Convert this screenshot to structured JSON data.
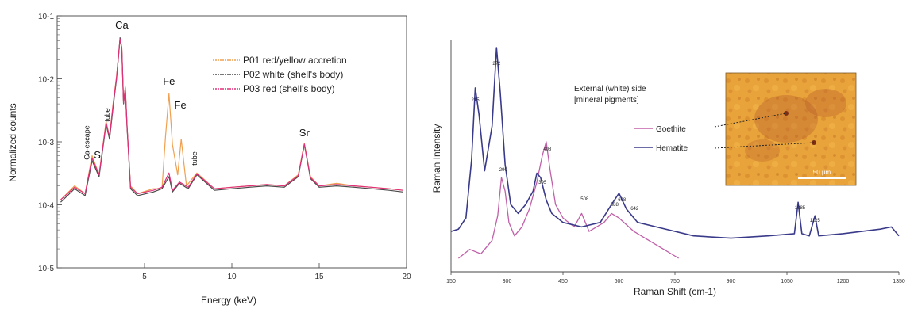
{
  "chart_data": [
    {
      "type": "line",
      "xlabel": "Energy (keV)",
      "ylabel": "Normalized counts",
      "xlim": [
        0,
        20
      ],
      "ylim_log10": [
        -5,
        -1
      ],
      "y_scale": "log",
      "x_ticks": [
        "5",
        "10",
        "15",
        "20"
      ],
      "y_ticks": [
        "10-5",
        "10-4",
        "10-3",
        "10-2",
        "10-1"
      ],
      "legend_position": "top-right",
      "series": [
        {
          "name": "P01 red/yellow accretion",
          "color": "#f0a050",
          "x": [
            0.2,
            1.0,
            1.6,
            2.0,
            2.4,
            2.8,
            3.0,
            3.2,
            3.4,
            3.6,
            3.7,
            3.8,
            3.9,
            4.0,
            4.2,
            4.6,
            5.5,
            6.0,
            6.2,
            6.4,
            6.6,
            6.9,
            7.1,
            7.4,
            8.0,
            9,
            10,
            11,
            12,
            13,
            13.8,
            14.15,
            14.5,
            15,
            16,
            17,
            18,
            19,
            19.8
          ],
          "y": [
            0.00012,
            0.0002,
            0.00015,
            0.0006,
            0.0003,
            0.0021,
            0.0012,
            0.004,
            0.011,
            0.042,
            0.032,
            0.0042,
            0.0075,
            0.0018,
            0.0002,
            0.00015,
            0.00018,
            0.00018,
            0.0012,
            0.0058,
            0.0009,
            0.0003,
            0.0011,
            0.0002,
            0.00032,
            0.00018,
            0.00019,
            0.0002,
            0.00021,
            0.0002,
            0.0003,
            0.00095,
            0.00028,
            0.0002,
            0.00022,
            0.0002,
            0.00019,
            0.00018,
            0.00017
          ]
        },
        {
          "name": "P02 white (shell's body)",
          "color": "#4a4a4a",
          "x": [
            0.2,
            1.0,
            1.6,
            2.0,
            2.4,
            2.8,
            3.0,
            3.2,
            3.4,
            3.6,
            3.7,
            3.8,
            3.9,
            4.0,
            4.2,
            4.6,
            5.5,
            6.0,
            6.4,
            6.6,
            7.0,
            7.5,
            8.0,
            9,
            10,
            11,
            12,
            13,
            13.8,
            14.15,
            14.5,
            15,
            16,
            17,
            18,
            19,
            19.8
          ],
          "y": [
            0.00011,
            0.00018,
            0.00014,
            0.0005,
            0.00028,
            0.0019,
            0.0011,
            0.0035,
            0.01,
            0.045,
            0.03,
            0.004,
            0.007,
            0.0017,
            0.00018,
            0.00014,
            0.00016,
            0.00018,
            0.00028,
            0.00016,
            0.00022,
            0.00018,
            0.0003,
            0.00017,
            0.00018,
            0.00019,
            0.0002,
            0.00019,
            0.00028,
            0.0009,
            0.00026,
            0.00019,
            0.0002,
            0.00019,
            0.00018,
            0.00017,
            0.00016
          ]
        },
        {
          "name": "P03 red (shell's body)",
          "color": "#e0307a",
          "x": [
            0.2,
            1.0,
            1.6,
            2.0,
            2.4,
            2.8,
            3.0,
            3.2,
            3.4,
            3.6,
            3.7,
            3.8,
            3.9,
            4.0,
            4.2,
            4.6,
            5.5,
            6.0,
            6.4,
            6.6,
            7.0,
            7.5,
            8.0,
            9,
            10,
            11,
            12,
            13,
            13.8,
            14.15,
            14.5,
            15,
            16,
            17,
            18,
            19,
            19.8
          ],
          "y": [
            0.00012,
            0.00019,
            0.00015,
            0.00055,
            0.0003,
            0.002,
            0.0012,
            0.0038,
            0.0105,
            0.043,
            0.031,
            0.0041,
            0.0072,
            0.0018,
            0.00019,
            0.00015,
            0.00017,
            0.00019,
            0.00032,
            0.00017,
            0.00023,
            0.00019,
            0.00031,
            0.00018,
            0.00019,
            0.0002,
            0.00021,
            0.0002,
            0.00029,
            0.00092,
            0.00027,
            0.0002,
            0.00021,
            0.0002,
            0.00019,
            0.00018,
            0.00017
          ]
        }
      ],
      "annotations": [
        {
          "text": "Ca",
          "x": 3.7,
          "size": "lg"
        },
        {
          "text": "Fe",
          "x": 6.4,
          "size": "lg"
        },
        {
          "text": "Fe",
          "x": 7.05,
          "size": "lg"
        },
        {
          "text": "Sr",
          "x": 14.15,
          "size": "lg"
        },
        {
          "text": "S",
          "x": 2.3,
          "size": "lg"
        },
        {
          "text": "Ca-escape",
          "x": 1.85,
          "size": "sm",
          "rotated": true
        },
        {
          "text": "tube",
          "x": 3.0,
          "size": "sm",
          "rotated": true
        },
        {
          "text": "tube",
          "x": 8.0,
          "size": "sm",
          "rotated": true
        }
      ]
    },
    {
      "type": "line",
      "xlabel": "Raman Shift (cm-1)",
      "ylabel": "Raman Intensity",
      "xlim": [
        150,
        1350
      ],
      "x_ticks": [
        "150",
        "300",
        "450",
        "600",
        "750",
        "900",
        "1050",
        "1200",
        "1350"
      ],
      "legend_position": "upper-center",
      "legend_title": [
        "External (white) side",
        "[mineral pigments]"
      ],
      "series": [
        {
          "name": "Goethite",
          "color": "#c060a8",
          "x": [
            170,
            200,
            230,
            260,
            275,
            285,
            295,
            305,
            320,
            340,
            360,
            380,
            395,
            405,
            415,
            430,
            450,
            480,
            500,
            520,
            540,
            560,
            580,
            600,
            640,
            680,
            720,
            760
          ],
          "y": [
            0.06,
            0.1,
            0.08,
            0.14,
            0.25,
            0.42,
            0.36,
            0.22,
            0.16,
            0.2,
            0.28,
            0.4,
            0.52,
            0.58,
            0.46,
            0.3,
            0.24,
            0.2,
            0.26,
            0.18,
            0.2,
            0.22,
            0.26,
            0.24,
            0.18,
            0.14,
            0.1,
            0.06
          ]
        },
        {
          "name": "Hematite",
          "color": "#3a3a8a",
          "x": [
            150,
            170,
            190,
            205,
            215,
            225,
            240,
            260,
            272,
            282,
            295,
            310,
            330,
            350,
            370,
            380,
            390,
            405,
            420,
            450,
            500,
            550,
            580,
            600,
            620,
            650,
            700,
            800,
            900,
            1000,
            1070,
            1080,
            1090,
            1110,
            1125,
            1135,
            1200,
            1250,
            1300,
            1330,
            1350
          ],
          "y": [
            0.18,
            0.19,
            0.24,
            0.5,
            0.82,
            0.7,
            0.45,
            0.65,
            1.0,
            0.8,
            0.48,
            0.3,
            0.26,
            0.3,
            0.36,
            0.44,
            0.42,
            0.32,
            0.26,
            0.22,
            0.2,
            0.22,
            0.3,
            0.35,
            0.28,
            0.22,
            0.2,
            0.16,
            0.15,
            0.16,
            0.17,
            0.31,
            0.17,
            0.16,
            0.25,
            0.16,
            0.17,
            0.18,
            0.19,
            0.2,
            0.16
          ]
        }
      ],
      "peak_labels": [
        {
          "text": "215",
          "x": 215
        },
        {
          "text": "272",
          "x": 272
        },
        {
          "text": "290",
          "x": 290
        },
        {
          "text": "395",
          "x": 395
        },
        {
          "text": "408",
          "x": 408
        },
        {
          "text": "508",
          "x": 508
        },
        {
          "text": "588",
          "x": 588
        },
        {
          "text": "608",
          "x": 608
        },
        {
          "text": "642",
          "x": 642
        },
        {
          "text": "1085",
          "x": 1085
        },
        {
          "text": "1125",
          "x": 1125
        }
      ],
      "inset": {
        "scale_label": "50 µm"
      }
    }
  ]
}
